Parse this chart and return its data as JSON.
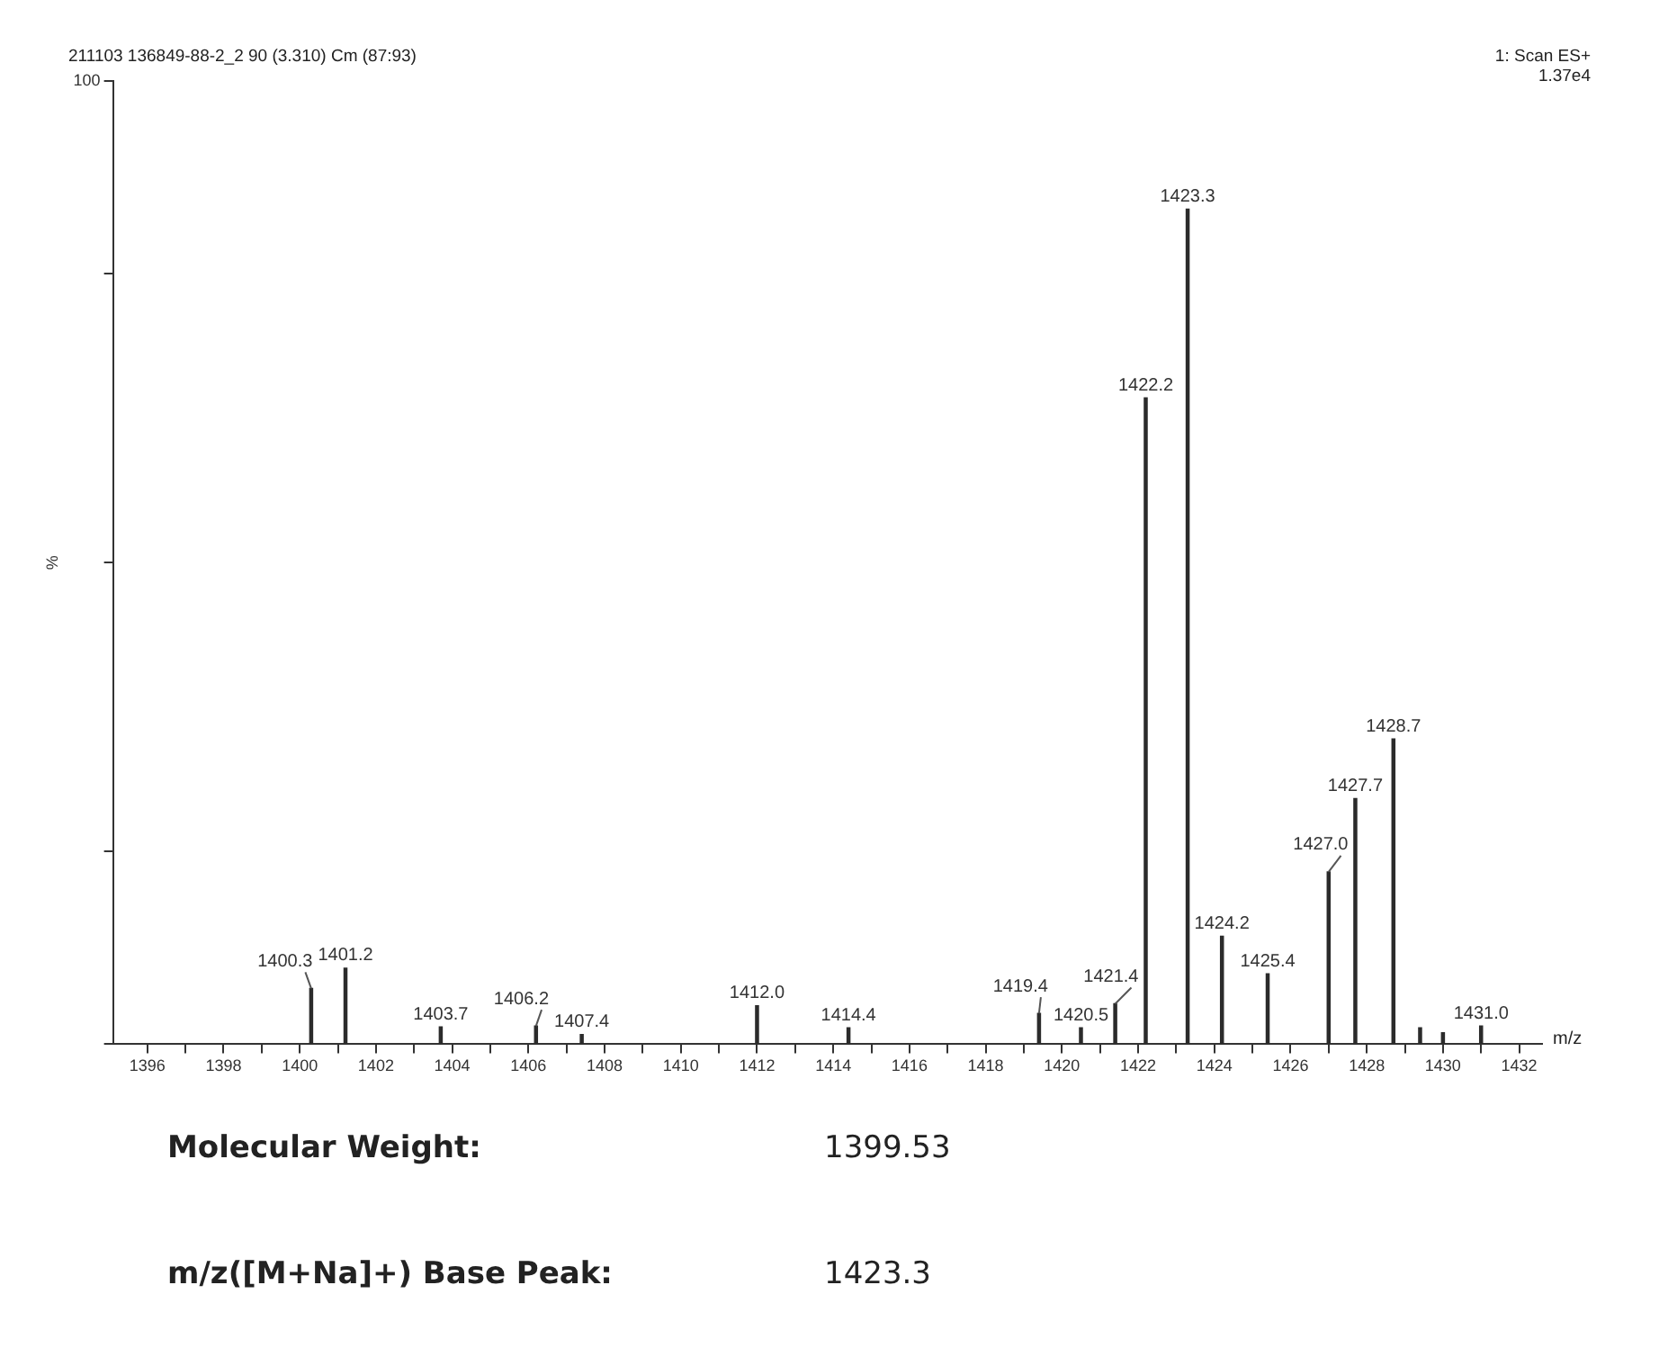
{
  "chart_data": {
    "type": "bar",
    "title": "211103 136849-88-2_2 90 (3.310) Cm (87:93)",
    "xlabel": "m/z",
    "ylabel": "%",
    "x": [
      1400.3,
      1401.2,
      1403.7,
      1406.2,
      1407.4,
      1412.0,
      1414.4,
      1419.4,
      1420.5,
      1421.4,
      1422.2,
      1423.3,
      1424.2,
      1425.4,
      1427.0,
      1427.7,
      1428.7,
      1429.4,
      1430.0,
      1431.0
    ],
    "values": [
      5.8,
      7.9,
      1.8,
      1.9,
      1.0,
      4.0,
      1.7,
      3.2,
      1.7,
      4.2,
      67.1,
      86.7,
      11.2,
      7.3,
      17.9,
      25.5,
      31.7,
      1.7,
      1.2,
      1.9
    ],
    "color": "#2b2b2b",
    "xlim": [
      1395.1,
      1432.6
    ],
    "xticks": [
      1396,
      {
        "value": 1397,
        "label": null
      },
      1398,
      {
        "value": 1399,
        "label": null
      },
      1400,
      {
        "value": 1401,
        "label": null
      },
      1402,
      {
        "value": 1403,
        "label": null
      },
      1404,
      {
        "value": 1405,
        "label": null
      },
      1406,
      {
        "value": 1407,
        "label": null
      },
      1408,
      {
        "value": 1409,
        "label": null
      },
      1410,
      {
        "value": 1411,
        "label": null
      },
      1412,
      {
        "value": 1413,
        "label": null
      },
      1414,
      {
        "value": 1415,
        "label": null
      },
      1416,
      {
        "value": 1417,
        "label": null
      },
      1418,
      {
        "value": 1419,
        "label": null
      },
      1420,
      {
        "value": 1421,
        "label": null
      },
      1422,
      {
        "value": 1423,
        "label": null
      },
      1424,
      {
        "value": 1425,
        "label": null
      },
      1426,
      {
        "value": 1427,
        "label": null
      },
      1428,
      {
        "value": 1429,
        "label": null
      },
      1430,
      {
        "value": 1431,
        "label": null
      },
      1432
    ],
    "ylim": [
      0,
      100
    ],
    "yticks": [
      0,
      {
        "value": 20,
        "label": null
      },
      {
        "value": 50,
        "label": null
      },
      {
        "value": 80,
        "label": null
      },
      100
    ],
    "grid": false,
    "legend": false,
    "annotations": [
      "1: Scan ES+",
      "1.37e4",
      "Molecular Weight:",
      "1399.53",
      "m/z([M+Na]+) Base Peak:",
      "1423.3",
      {
        "text": "1400.3",
        "x": 1400.3,
        "y": 5.8
      },
      {
        "text": "1401.2",
        "x": 1401.2,
        "y": 7.9
      },
      {
        "text": "1403.7",
        "x": 1403.7,
        "y": 1.8
      },
      {
        "text": "1406.2",
        "x": 1406.2,
        "y": 1.9
      },
      {
        "text": "1407.4",
        "x": 1407.4,
        "y": 1.0
      },
      {
        "text": "1412.0",
        "x": 1412.0,
        "y": 4.0
      },
      {
        "text": "1414.4",
        "x": 1414.4,
        "y": 1.7
      },
      {
        "text": "1419.4",
        "x": 1419.4,
        "y": 3.2
      },
      {
        "text": "1420.5",
        "x": 1420.5,
        "y": 1.7
      },
      {
        "text": "1421.4",
        "x": 1421.4,
        "y": 4.2
      },
      {
        "text": "1422.2",
        "x": 1422.2,
        "y": 67.1
      },
      {
        "text": "1423.3",
        "x": 1423.3,
        "y": 86.7
      },
      {
        "text": "1424.2",
        "x": 1424.2,
        "y": 11.2
      },
      {
        "text": "1425.4",
        "x": 1425.4,
        "y": 7.3
      },
      {
        "text": "1427.0",
        "x": 1427.0,
        "y": 17.9
      },
      {
        "text": "1427.7",
        "x": 1427.7,
        "y": 25.5
      },
      {
        "text": "1428.7",
        "x": 1428.7,
        "y": 31.7
      },
      {
        "text": "1431.0",
        "x": 1431.0,
        "y": 1.9
      }
    ]
  }
}
